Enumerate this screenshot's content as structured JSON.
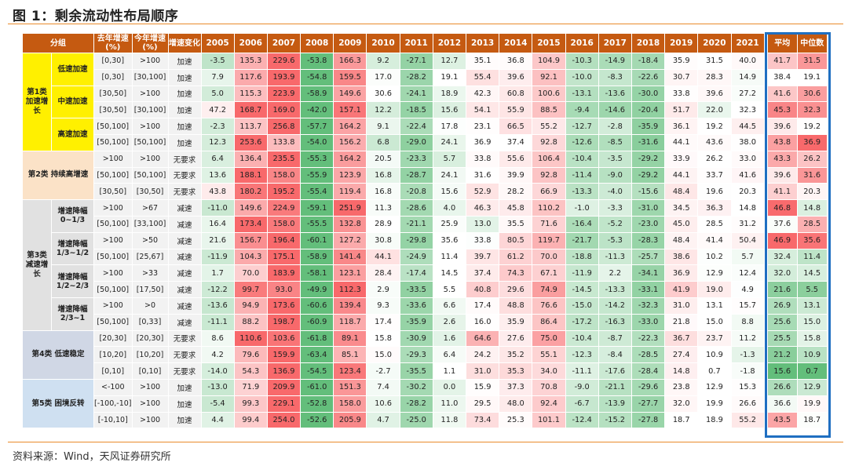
{
  "title": "图 1：剩余流动性布局顺序",
  "source": "资料来源：Wind，天风证券研究所",
  "header": {
    "group": "分组",
    "prev": "去年增速\n(%)",
    "curr": "今年增速\n(%)",
    "change": "增速变化",
    "years": [
      "2005",
      "2006",
      "2007",
      "2008",
      "2009",
      "2010",
      "2011",
      "2012",
      "2013",
      "2014",
      "2015",
      "2016",
      "2017",
      "2018",
      "2019",
      "2020",
      "2021"
    ],
    "avg": "平均",
    "median": "中位数"
  },
  "colors": {
    "header_bg": "#c55a11",
    "highlight_border": "#1f6fc1",
    "heat_high": "#f8696b",
    "heat_mid": "#ffffff",
    "heat_low": "#63be7b"
  },
  "groups": [
    {
      "label": "第1类\n加速增长",
      "theme": "yellow",
      "text": "red",
      "subs": [
        {
          "label": "低速加速",
          "rows": [
            0,
            1
          ]
        },
        {
          "label": "中速加速",
          "rows": [
            2,
            3
          ]
        },
        {
          "label": "高速加速",
          "rows": [
            4,
            5
          ]
        }
      ]
    },
    {
      "label": "第2类  持续高增速",
      "theme": "orange",
      "text": "red",
      "subs": null,
      "rows": [
        6,
        7,
        8
      ]
    },
    {
      "label": "第3类\n减速增长",
      "theme": "gray",
      "text": "blue",
      "subs": [
        {
          "label": "增速降幅\n0~1/3",
          "rows": [
            9,
            10
          ]
        },
        {
          "label": "增速降幅\n1/3~1/2",
          "rows": [
            11,
            12
          ]
        },
        {
          "label": "增速降幅\n1/2~2/3",
          "rows": [
            13,
            14
          ]
        },
        {
          "label": "增速降幅\n2/3~1",
          "rows": [
            15,
            16
          ]
        }
      ]
    },
    {
      "label": "第4类  低速稳定",
      "theme": "gray2",
      "text": "blue",
      "subs": null,
      "rows": [
        17,
        18,
        19
      ]
    },
    {
      "label": "第5类  困境反转",
      "theme": "blue",
      "text": "red",
      "subs": null,
      "rows": [
        20,
        21,
        22
      ]
    }
  ],
  "rows": [
    {
      "prev": "[0,30]",
      "curr": ">100",
      "change": "加速",
      "values": [
        -3.5,
        135.3,
        229.6,
        -53.8,
        166.3,
        9.2,
        -27.1,
        12.7,
        35.1,
        36.8,
        104.9,
        -10.3,
        -14.9,
        -18.4,
        35.9,
        31.5,
        40.0
      ],
      "avg": 41.7,
      "median": 31.5
    },
    {
      "prev": "[0,30]",
      "curr": "[30,100]",
      "change": "加速",
      "values": [
        7.9,
        117.6,
        193.9,
        -54.8,
        159.5,
        17.0,
        -28.2,
        19.1,
        55.4,
        39.6,
        92.1,
        -10.0,
        -8.3,
        -22.6,
        30.7,
        28.3,
        14.9
      ],
      "avg": 38.4,
      "median": 19.1
    },
    {
      "prev": "[30,50]",
      "curr": ">100",
      "change": "加速",
      "values": [
        5.0,
        115.3,
        223.9,
        -58.9,
        149.6,
        30.6,
        -24.1,
        18.9,
        42.3,
        60.8,
        100.6,
        -13.1,
        -13.6,
        -30.0,
        33.8,
        39.6,
        27.2
      ],
      "avg": 41.6,
      "median": 30.6
    },
    {
      "prev": "[30,50]",
      "curr": "[30,100]",
      "change": "加速",
      "values": [
        47.2,
        168.7,
        169.0,
        -42.0,
        157.1,
        12.2,
        -18.5,
        15.6,
        54.1,
        55.9,
        88.5,
        -9.4,
        -14.6,
        -20.4,
        51.7,
        22.0,
        32.3
      ],
      "avg": 45.3,
      "median": 32.3
    },
    {
      "prev": "[50,100]",
      "curr": ">100",
      "change": "加速",
      "values": [
        -2.3,
        113.7,
        256.8,
        -57.7,
        164.2,
        9.1,
        -22.4,
        17.8,
        23.1,
        66.5,
        55.2,
        -12.7,
        -2.8,
        -35.9,
        36.1,
        19.2,
        44.5
      ],
      "avg": 39.6,
      "median": 19.2
    },
    {
      "prev": "[50,100]",
      "curr": "[50,100]",
      "change": "加速",
      "values": [
        12.3,
        253.6,
        133.8,
        -54.0,
        156.2,
        6.8,
        -29.0,
        24.1,
        36.9,
        37.4,
        92.8,
        -12.6,
        -8.5,
        -31.6,
        44.1,
        43.6,
        38.0
      ],
      "avg": 43.8,
      "median": 36.9
    },
    {
      "prev": ">100",
      "curr": ">100",
      "change": "无要求",
      "values": [
        6.4,
        136.4,
        235.5,
        -55.3,
        164.2,
        20.5,
        -23.3,
        5.7,
        33.8,
        55.6,
        106.4,
        -10.4,
        -3.5,
        -29.2,
        33.9,
        26.2,
        33.0
      ],
      "avg": 43.3,
      "median": 26.2
    },
    {
      "prev": "[50,100]",
      "curr": "[50,100]",
      "change": "无要求",
      "values": [
        13.6,
        188.1,
        158.0,
        -55.9,
        123.9,
        16.8,
        -28.7,
        24.1,
        31.6,
        39.9,
        92.8,
        -11.4,
        -9.0,
        -29.2,
        44.1,
        33.7,
        41.6
      ],
      "avg": 39.6,
      "median": 31.6
    },
    {
      "prev": "[30,50]",
      "curr": "[30,50]",
      "change": "无要求",
      "values": [
        43.8,
        180.2,
        195.2,
        -55.4,
        119.4,
        16.8,
        -20.8,
        15.6,
        52.9,
        28.2,
        66.9,
        -13.3,
        -4.0,
        -15.6,
        48.4,
        19.6,
        20.3
      ],
      "avg": 41.1,
      "median": 20.3
    },
    {
      "prev": ">100",
      "curr": ">67",
      "change": "减速",
      "values": [
        -11.0,
        149.6,
        224.9,
        -59.1,
        251.9,
        11.3,
        -28.6,
        4.0,
        46.3,
        45.8,
        110.2,
        -1.0,
        -3.3,
        -31.0,
        34.5,
        36.3,
        14.8
      ],
      "avg": 46.8,
      "median": 14.8
    },
    {
      "prev": "[50,100]",
      "curr": "[33,100]",
      "change": "减速",
      "values": [
        16.4,
        173.4,
        158.0,
        -55.5,
        132.8,
        28.9,
        -21.1,
        25.9,
        13.0,
        35.5,
        71.6,
        -16.4,
        -5.2,
        -23.0,
        45.0,
        28.5,
        31.2
      ],
      "avg": 37.6,
      "median": 28.5
    },
    {
      "prev": ">100",
      "curr": ">50",
      "change": "减速",
      "values": [
        21.6,
        156.7,
        196.4,
        -60.1,
        127.2,
        30.8,
        -29.8,
        35.6,
        33.8,
        80.5,
        119.7,
        -21.7,
        -5.3,
        -28.3,
        48.4,
        41.4,
        50.4
      ],
      "avg": 46.9,
      "median": 35.6
    },
    {
      "prev": "[50,100]",
      "curr": "[25,67]",
      "change": "减速",
      "values": [
        -11.9,
        104.3,
        175.1,
        -58.9,
        141.4,
        44.1,
        -24.9,
        11.4,
        39.7,
        61.2,
        70.0,
        -18.8,
        -11.3,
        -25.7,
        38.6,
        10.2,
        5.7
      ],
      "avg": 32.4,
      "median": 11.4
    },
    {
      "prev": ">100",
      "curr": ">33",
      "change": "减速",
      "values": [
        1.7,
        70.0,
        183.9,
        -58.1,
        123.1,
        28.4,
        -17.4,
        14.5,
        37.4,
        74.3,
        67.1,
        -11.9,
        2.2,
        -34.1,
        36.9,
        12.9,
        12.4
      ],
      "avg": 32.0,
      "median": 14.5
    },
    {
      "prev": "[50,100]",
      "curr": "[17,50]",
      "change": "减速",
      "values": [
        -12.2,
        99.7,
        93.0,
        -49.9,
        112.3,
        2.9,
        -33.5,
        5.5,
        40.8,
        29.6,
        74.9,
        -14.5,
        -13.3,
        -33.1,
        41.9,
        19.0,
        4.9
      ],
      "avg": 21.6,
      "median": 5.5
    },
    {
      "prev": ">100",
      "curr": ">0",
      "change": "减速",
      "values": [
        -13.6,
        94.9,
        173.6,
        -60.6,
        139.4,
        9.3,
        -33.6,
        6.6,
        17.4,
        48.8,
        76.6,
        -15.0,
        -14.2,
        -32.3,
        31.0,
        13.1,
        15.7
      ],
      "avg": 26.9,
      "median": 13.1
    },
    {
      "prev": "[50,100]",
      "curr": "[0,33]",
      "change": "减速",
      "values": [
        -11.1,
        88.2,
        198.7,
        -60.9,
        118.7,
        17.4,
        -35.9,
        2.6,
        16.0,
        35.9,
        86.4,
        -17.2,
        -16.3,
        -33.0,
        21.8,
        15.0,
        8.8
      ],
      "avg": 25.6,
      "median": 15.0
    },
    {
      "prev": "[20,30]",
      "curr": "[20,30]",
      "change": "无要求",
      "values": [
        8.6,
        110.6,
        103.6,
        -61.8,
        89.1,
        15.8,
        -30.9,
        1.6,
        64.6,
        27.6,
        75.0,
        -10.4,
        -8.7,
        -22.3,
        36.7,
        23.7,
        11.2
      ],
      "avg": 25.5,
      "median": 15.8
    },
    {
      "prev": "[10,20]",
      "curr": "[10,20]",
      "change": "无要求",
      "values": [
        4.2,
        79.6,
        159.9,
        -63.4,
        85.1,
        15.0,
        -29.3,
        6.4,
        24.2,
        35.2,
        55.1,
        -12.3,
        -8.4,
        -28.5,
        27.4,
        10.9,
        -1.3
      ],
      "avg": 21.2,
      "median": 10.9
    },
    {
      "prev": "[0,10]",
      "curr": "[0,10]",
      "change": "无要求",
      "values": [
        -14.0,
        54.3,
        136.9,
        -54.5,
        123.4,
        -2.7,
        -35.5,
        1.1,
        31.0,
        35.3,
        34.0,
        -11.1,
        -17.6,
        -28.4,
        14.8,
        0.7,
        -1.8
      ],
      "avg": 15.6,
      "median": 0.7
    },
    {
      "prev": "<-100",
      "curr": ">100",
      "change": "加速",
      "values": [
        -13.0,
        71.9,
        209.9,
        -61.0,
        151.3,
        7.4,
        -30.2,
        0.0,
        15.9,
        37.3,
        70.8,
        -9.0,
        -21.1,
        -29.6,
        23.8,
        12.9,
        15.3
      ],
      "avg": 26.6,
      "median": 12.9
    },
    {
      "prev": "[-100,-10]",
      "curr": ">100",
      "change": "加速",
      "values": [
        -5.4,
        99.3,
        229.1,
        -52.8,
        158.0,
        10.6,
        -28.2,
        11.0,
        29.5,
        48.0,
        92.4,
        -6.7,
        -13.9,
        -27.7,
        32.0,
        19.9,
        26.6
      ],
      "avg": 36.6,
      "median": 19.9
    },
    {
      "prev": "[-10,10]",
      "curr": ">100",
      "change": "加速",
      "values": [
        4.4,
        99.4,
        254.0,
        -52.6,
        205.9,
        4.7,
        -25.0,
        11.8,
        73.4,
        25.3,
        101.1,
        -12.4,
        -15.2,
        -27.8,
        18.7,
        18.9,
        55.2
      ],
      "avg": 43.5,
      "median": 18.7
    }
  ]
}
